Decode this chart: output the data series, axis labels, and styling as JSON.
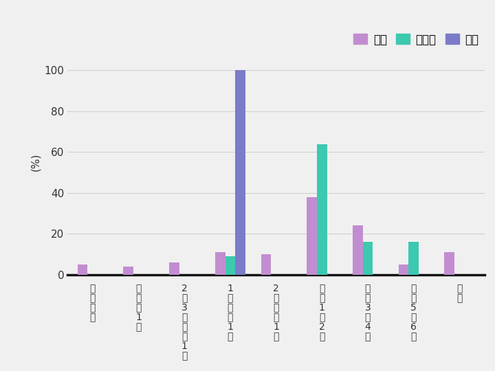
{
  "categories": [
    "会えない",
    "半年に1回",
    "2、3ケ月に1回",
    "1ケ月に1回",
    "2週間に1回",
    "週に1、2回",
    "週に3、4回",
    "週に5、6回",
    "毎日"
  ],
  "student": [
    5,
    4,
    6,
    11,
    10,
    38,
    24,
    5,
    11
  ],
  "worker": [
    0,
    0,
    0,
    9,
    0,
    64,
    16,
    16,
    0
  ],
  "unemployed": [
    0,
    0,
    0,
    100,
    0,
    0,
    0,
    0,
    0
  ],
  "student_color": "#c28dd0",
  "worker_color": "#3dc8b0",
  "unemployed_color": "#7b7bc8",
  "background_color": "#f0f0f0",
  "legend_labels": [
    "学生",
    "社会人",
    "無職"
  ],
  "ylabel": "(%)",
  "ylim": [
    0,
    110
  ],
  "yticks": [
    0,
    20,
    40,
    60,
    80,
    100
  ],
  "bar_width": 0.22,
  "grid_color": "#d0d0d0",
  "multiline_labels": [
    "会\nえ\nな\nい",
    "半\n年\nに\n1\n回",
    "2\n、\n3\nケ\n月\nに\n1\n回",
    "1\nケ\n月\nに\n1\n回",
    "2\n週\n間\nに\n1\n回",
    "週\nに\n1\n、\n2\n回",
    "週\nに\n3\n、\n4\n回",
    "週\nに\n5\n、\n6\n回",
    "毎\n日"
  ]
}
